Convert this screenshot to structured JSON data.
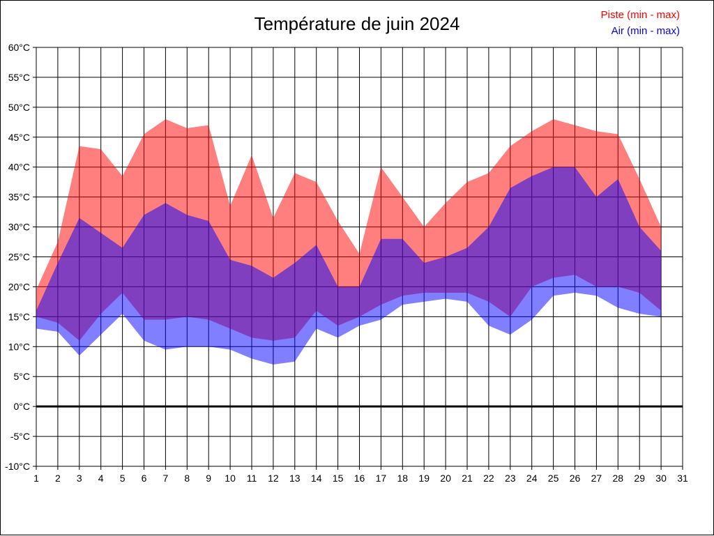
{
  "chart_data": {
    "type": "area",
    "title": "Température de juin 2024",
    "xlabel": "",
    "ylabel": "",
    "xlim": [
      1,
      31
    ],
    "ylim": [
      -10,
      60
    ],
    "y_step": 5,
    "y_suffix": "°C",
    "grid": true,
    "zero_line_width": 3,
    "legend_position": "top-right",
    "x": [
      1,
      2,
      3,
      4,
      5,
      6,
      7,
      8,
      9,
      10,
      11,
      12,
      13,
      14,
      15,
      16,
      17,
      18,
      19,
      20,
      21,
      22,
      23,
      24,
      25,
      26,
      27,
      28,
      29,
      30
    ],
    "series": [
      {
        "name": "Piste (min - max)",
        "legend_color": "#ff0000",
        "fill_color": "rgba(255,0,0,0.5)",
        "max": [
          19.5,
          27.5,
          43.5,
          43,
          38.5,
          45.5,
          48,
          46.5,
          47,
          33.5,
          42,
          31.5,
          39,
          37.5,
          31,
          25.5,
          40,
          35,
          30,
          34,
          37.5,
          39,
          43.5,
          46,
          48,
          47,
          46,
          45.5,
          38,
          30
        ],
        "min": [
          15,
          14,
          11,
          15.5,
          19,
          14.5,
          14.5,
          15,
          14.5,
          13,
          11.5,
          11,
          11.5,
          16,
          13.5,
          15,
          17,
          18.5,
          19,
          19,
          19,
          17.5,
          15,
          20,
          21.5,
          22,
          20,
          20,
          19,
          16
        ]
      },
      {
        "name": "Air (min - max)",
        "legend_color": "#0000ff",
        "fill_color": "rgba(0,0,255,0.5)",
        "max": [
          16,
          24,
          31.5,
          29,
          26.5,
          32,
          34,
          32,
          31,
          24.5,
          23.5,
          21.5,
          24,
          27,
          20,
          20,
          28,
          28,
          24,
          25,
          26.5,
          30,
          36.5,
          38.5,
          40,
          40,
          35,
          38,
          30,
          26
        ],
        "min": [
          13,
          12.5,
          8.5,
          12,
          15.5,
          11,
          9.5,
          10,
          10,
          9.5,
          8,
          7,
          7.5,
          13,
          11.5,
          13.5,
          14.5,
          17,
          17.5,
          18,
          17.5,
          13.5,
          12,
          14.5,
          18.5,
          19,
          18.5,
          16.5,
          15.5,
          15
        ]
      }
    ]
  }
}
